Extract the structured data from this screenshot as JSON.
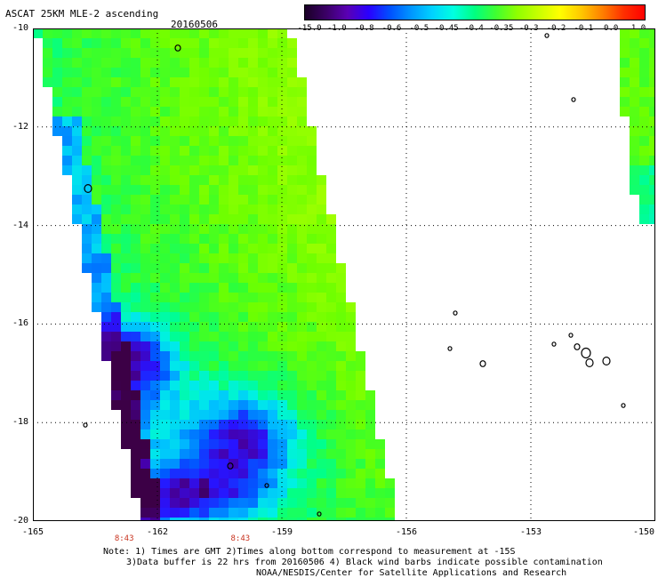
{
  "header": {
    "title": "ASCAT 25KM MLE-2 ascending",
    "date": "20160506"
  },
  "colorbar": {
    "labels": [
      "-15.0",
      "-1.0",
      "-0.8",
      "-0.6",
      "-0.5",
      "-0.45",
      "-0.4",
      "-0.35",
      "-0.3",
      "-0.2",
      "-0.1",
      "0.0",
      "1.0"
    ],
    "colors": [
      "#1a0026",
      "#3b0066",
      "#5a00b4",
      "#2a00ff",
      "#0050ff",
      "#0096ff",
      "#00d2ff",
      "#00ffe0",
      "#00ff80",
      "#40ff30",
      "#90ff00",
      "#c8ff00",
      "#ffff00",
      "#ffc800",
      "#ff8000",
      "#ff3000",
      "#ff0000"
    ]
  },
  "map": {
    "lat_labels": [
      "-10",
      "-12",
      "-14",
      "-16",
      "-18",
      "-20"
    ],
    "lon_labels": [
      "-165",
      "-162",
      "-159",
      "-156",
      "-153",
      "-150"
    ],
    "lat_values": [
      -10,
      -12,
      -14,
      -16,
      -18,
      -20
    ],
    "lon_values": [
      -165,
      -162,
      -159,
      -156,
      -153,
      -150
    ],
    "lat_range": [
      -20,
      -10
    ],
    "lon_range": [
      -165,
      -150
    ],
    "grid": true,
    "grid_style": "dotted",
    "pass_times": [
      {
        "label": "8:43",
        "lon": -162.8
      },
      {
        "label": "8:43",
        "lon": -160.0
      }
    ]
  },
  "notes": {
    "line1": "Note: 1) Times are GMT 2)Times along bottom correspond to measurement at -15S",
    "line2": "3)Data buffer is 22 hrs from 20160506 4) Black wind barbs indicate possible contamination",
    "line3": "NOAA/NESDIS/Center for Satellite Applications and Research"
  }
}
